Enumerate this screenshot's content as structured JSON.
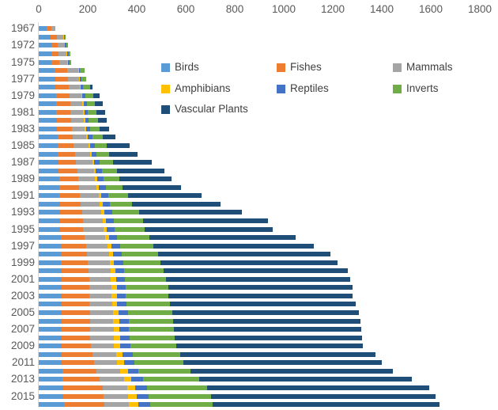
{
  "chart_data": {
    "type": "bar",
    "orientation": "horizontal",
    "stacked": true,
    "title": "",
    "xlabel": "",
    "ylabel": "",
    "grid": false,
    "x_axis": {
      "position": "top",
      "min": 0,
      "max": 1800,
      "tick_step": 200,
      "tick_labels": [
        "0",
        "200",
        "400",
        "600",
        "800",
        "1000",
        "1200",
        "1400",
        "1600",
        "1800"
      ]
    },
    "y_axis": {
      "labeled_years": [
        "1967",
        "1972",
        "1975",
        "1977",
        "1979",
        "1981",
        "1983",
        "1985",
        "1987",
        "1989",
        "1991",
        "1993",
        "1995",
        "1997",
        "1999",
        "2001",
        "2003",
        "2005",
        "2007",
        "2009",
        "2011",
        "2013",
        "2015"
      ]
    },
    "categories": [
      1967,
      1970,
      1972,
      1974,
      1975,
      1976,
      1977,
      1978,
      1979,
      1980,
      1981,
      1982,
      1983,
      1984,
      1985,
      1986,
      1987,
      1988,
      1989,
      1990,
      1991,
      1992,
      1993,
      1994,
      1995,
      1996,
      1997,
      1998,
      1999,
      2000,
      2001,
      2002,
      2003,
      2004,
      2005,
      2006,
      2007,
      2008,
      2009,
      2010,
      2011,
      2012,
      2013,
      2014,
      2015,
      2016
    ],
    "series": [
      {
        "name": "Birds",
        "color": "#5B9BD5",
        "values": [
          31,
          49,
          50,
          52,
          53,
          66,
          67,
          68,
          70,
          71,
          72,
          73,
          74,
          76,
          78,
          79,
          81,
          82,
          83,
          84,
          85,
          86,
          87,
          88,
          88,
          89,
          90,
          90,
          91,
          92,
          92,
          92,
          92,
          92,
          93,
          93,
          93,
          93,
          93,
          94,
          95,
          96,
          98,
          100,
          101,
          102
        ]
      },
      {
        "name": "Fishes",
        "color": "#ED7D31",
        "values": [
          21,
          25,
          27,
          30,
          31,
          51,
          52,
          54,
          56,
          57,
          58,
          59,
          60,
          62,
          65,
          68,
          72,
          75,
          77,
          80,
          84,
          86,
          89,
          92,
          93,
          98,
          105,
          108,
          110,
          112,
          113,
          114,
          114,
          115,
          116,
          117,
          118,
          118,
          119,
          126,
          130,
          140,
          150,
          160,
          163,
          165
        ]
      },
      {
        "name": "Mammals",
        "color": "#A5A5A5",
        "values": [
          16,
          27,
          29,
          31,
          32,
          43,
          44,
          46,
          48,
          50,
          51,
          52,
          53,
          56,
          60,
          62,
          65,
          68,
          70,
          73,
          76,
          78,
          80,
          82,
          83,
          85,
          87,
          88,
          89,
          90,
          90,
          91,
          91,
          92,
          93,
          94,
          94,
          95,
          95,
          96,
          96,
          97,
          99,
          100,
          101,
          102
        ]
      },
      {
        "name": "Amphibians",
        "color": "#FFC000",
        "values": [
          0,
          2,
          2,
          3,
          3,
          3,
          4,
          4,
          5,
          5,
          5,
          5,
          6,
          6,
          7,
          7,
          8,
          8,
          9,
          9,
          10,
          10,
          11,
          11,
          12,
          14,
          16,
          17,
          18,
          19,
          20,
          21,
          21,
          22,
          23,
          24,
          24,
          25,
          25,
          26,
          27,
          30,
          32,
          34,
          35,
          36
        ]
      },
      {
        "name": "Reptiles",
        "color": "#4472C4",
        "values": [
          0,
          4,
          5,
          6,
          7,
          6,
          8,
          10,
          12,
          13,
          14,
          15,
          16,
          18,
          20,
          21,
          23,
          25,
          26,
          28,
          30,
          31,
          33,
          34,
          34,
          35,
          35,
          36,
          36,
          37,
          37,
          38,
          38,
          38,
          39,
          39,
          40,
          40,
          41,
          42,
          43,
          45,
          47,
          49,
          50,
          51
        ]
      },
      {
        "name": "Inverts",
        "color": "#70AD47",
        "values": [
          0,
          4,
          5,
          7,
          8,
          18,
          20,
          27,
          31,
          34,
          36,
          37,
          38,
          42,
          46,
          50,
          55,
          60,
          63,
          68,
          80,
          90,
          110,
          120,
          122,
          130,
          135,
          148,
          153,
          160,
          168,
          172,
          172,
          176,
          180,
          183,
          184,
          185,
          187,
          195,
          200,
          210,
          230,
          245,
          252,
          255
        ]
      },
      {
        "name": "Vascular Plants",
        "color": "#1F4E79",
        "values": [
          0,
          0,
          0,
          0,
          0,
          0,
          0,
          10,
          25,
          30,
          35,
          37,
          40,
          54,
          95,
          115,
          158,
          195,
          213,
          240,
          300,
          360,
          420,
          510,
          523,
          596,
          654,
          702,
          722,
          752,
          750,
          753,
          753,
          758,
          761,
          764,
          763,
          762,
          764,
          796,
          809,
          827,
          868,
          905,
          918,
          925
        ]
      }
    ],
    "legend": {
      "position": "overlay-top-center",
      "entries": [
        {
          "label": "Birds",
          "color": "#5B9BD5"
        },
        {
          "label": "Fishes",
          "color": "#ED7D31"
        },
        {
          "label": "Mammals",
          "color": "#A5A5A5"
        },
        {
          "label": "Amphibians",
          "color": "#FFC000"
        },
        {
          "label": "Reptiles",
          "color": "#4472C4"
        },
        {
          "label": "Inverts",
          "color": "#70AD47"
        },
        {
          "label": "Vascular Plants",
          "color": "#1F4E79"
        }
      ]
    }
  }
}
